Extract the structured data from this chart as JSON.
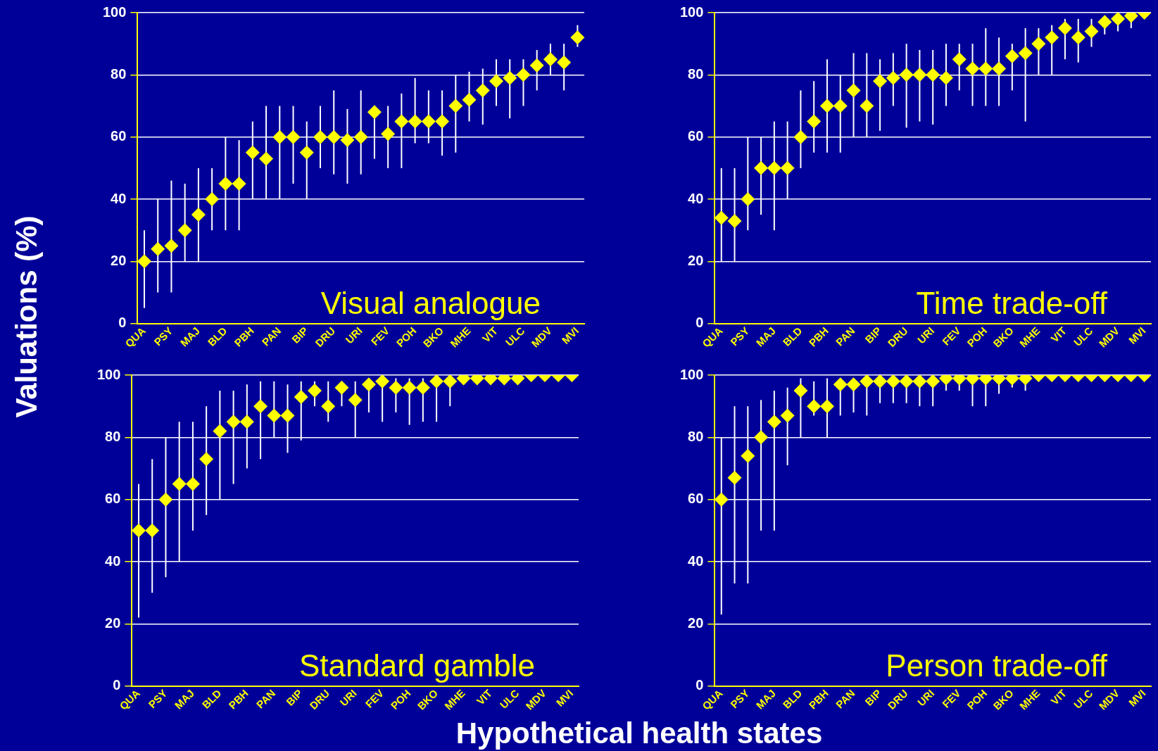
{
  "chart_data": [
    {
      "type": "scatter",
      "title": "Visual analogue",
      "xlabel": "Hypothetical health states",
      "ylabel": "Valuations (%)",
      "categories": [
        "QUA",
        null,
        "PSY",
        null,
        "MAJ",
        null,
        "BLD",
        null,
        "PBH",
        null,
        "PAN",
        null,
        "BIP",
        null,
        "DRU",
        null,
        "URI",
        null,
        "FEV",
        null,
        "POH",
        null,
        "BKO",
        null,
        "MHE",
        null,
        "VIT",
        null,
        "ULC",
        null,
        "MDV",
        null,
        "MVI"
      ],
      "series": [
        {
          "color": "#ffff00",
          "values": [
            20,
            24,
            25,
            30,
            35,
            40,
            45,
            45,
            55,
            53,
            60,
            60,
            55,
            60,
            60,
            59,
            60,
            68,
            61,
            65,
            65,
            65,
            65,
            70,
            72,
            75,
            78,
            79,
            80,
            83,
            85,
            84,
            92
          ],
          "errors": [
            [
              5,
              30
            ],
            [
              10,
              40
            ],
            [
              10,
              46
            ],
            [
              20,
              45
            ],
            [
              20,
              50
            ],
            [
              30,
              50
            ],
            [
              30,
              60
            ],
            [
              30,
              59
            ],
            [
              40,
              65
            ],
            [
              40,
              70
            ],
            [
              40,
              70
            ],
            [
              45,
              70
            ],
            [
              40,
              65
            ],
            [
              50,
              70
            ],
            [
              48,
              75
            ],
            [
              45,
              69
            ],
            [
              48,
              75
            ],
            [
              53,
              70
            ],
            [
              50,
              70
            ],
            [
              50,
              74
            ],
            [
              58,
              79
            ],
            [
              58,
              75
            ],
            [
              54,
              75
            ],
            [
              55,
              80
            ],
            [
              65,
              81
            ],
            [
              64,
              82
            ],
            [
              70,
              85
            ],
            [
              66,
              85
            ],
            [
              70,
              85
            ],
            [
              75,
              88
            ],
            [
              80,
              90
            ],
            [
              75,
              90
            ],
            [
              89,
              96
            ]
          ]
        }
      ],
      "ylim": [
        0,
        100
      ],
      "yticks": [
        0,
        20,
        40,
        60,
        80,
        100
      ],
      "grid": "y",
      "marker": "diamond"
    },
    {
      "type": "scatter",
      "title": "Time trade-off",
      "categories": [
        "QUA",
        null,
        "PSY",
        null,
        "MAJ",
        null,
        "BLD",
        null,
        "PBH",
        null,
        "PAN",
        null,
        "BIP",
        null,
        "DRU",
        null,
        "URI",
        null,
        "FEV",
        null,
        "POH",
        null,
        "BKO",
        null,
        "MHE",
        null,
        "VIT",
        null,
        "ULC",
        null,
        "MDV",
        null,
        "MVI"
      ],
      "series": [
        {
          "color": "#ffff00",
          "values": [
            34,
            33,
            40,
            50,
            50,
            50,
            60,
            65,
            70,
            70,
            75,
            70,
            78,
            79,
            80,
            80,
            80,
            79,
            85,
            82,
            82,
            82,
            86,
            87,
            90,
            92,
            95,
            92,
            94,
            97,
            98,
            99,
            100
          ],
          "errors": [
            [
              20,
              50
            ],
            [
              20,
              50
            ],
            [
              30,
              60
            ],
            [
              35,
              60
            ],
            [
              30,
              65
            ],
            [
              40,
              65
            ],
            [
              50,
              75
            ],
            [
              55,
              78
            ],
            [
              55,
              85
            ],
            [
              55,
              80
            ],
            [
              60,
              87
            ],
            [
              60,
              87
            ],
            [
              62,
              85
            ],
            [
              70,
              87
            ],
            [
              63,
              90
            ],
            [
              65,
              88
            ],
            [
              64,
              88
            ],
            [
              70,
              90
            ],
            [
              75,
              90
            ],
            [
              70,
              90
            ],
            [
              70,
              95
            ],
            [
              70,
              92
            ],
            [
              75,
              90
            ],
            [
              65,
              95
            ],
            [
              80,
              95
            ],
            [
              80,
              96
            ],
            [
              85,
              98
            ],
            [
              84,
              98
            ],
            [
              89,
              98
            ],
            [
              93,
              99
            ],
            [
              94,
              99
            ],
            [
              95,
              100
            ],
            null
          ]
        }
      ],
      "ylim": [
        0,
        100
      ],
      "yticks": [
        0,
        20,
        40,
        60,
        80,
        100
      ],
      "grid": "y",
      "marker": "diamond"
    },
    {
      "type": "scatter",
      "title": "Standard gamble",
      "categories": [
        "QUA",
        null,
        "PSY",
        null,
        "MAJ",
        null,
        "BLD",
        null,
        "PBH",
        null,
        "PAN",
        null,
        "BIP",
        null,
        "DRU",
        null,
        "URI",
        null,
        "FEV",
        null,
        "POH",
        null,
        "BKO",
        null,
        "MHE",
        null,
        "VIT",
        null,
        "ULC",
        null,
        "MDV",
        null,
        "MVI"
      ],
      "series": [
        {
          "color": "#ffff00",
          "values": [
            50,
            50,
            60,
            65,
            65,
            73,
            82,
            85,
            85,
            90,
            87,
            87,
            93,
            95,
            90,
            96,
            92,
            97,
            98,
            96,
            96,
            96,
            98,
            98,
            99,
            99,
            99,
            99,
            99,
            100,
            100,
            100,
            100
          ],
          "errors": [
            [
              22,
              65
            ],
            [
              30,
              73
            ],
            [
              35,
              80
            ],
            [
              40,
              85
            ],
            [
              50,
              85
            ],
            [
              55,
              90
            ],
            [
              60,
              95
            ],
            [
              65,
              95
            ],
            [
              70,
              97
            ],
            [
              73,
              98
            ],
            [
              80,
              98
            ],
            [
              75,
              97
            ],
            [
              79,
              98
            ],
            [
              90,
              98
            ],
            [
              85,
              98
            ],
            [
              90,
              98
            ],
            [
              80,
              98
            ],
            [
              88,
              99
            ],
            [
              85,
              99
            ],
            [
              88,
              99
            ],
            [
              84,
              99
            ],
            [
              85,
              99
            ],
            [
              85,
              100
            ],
            [
              90,
              99
            ],
            null,
            null,
            null,
            [
              97,
              100
            ],
            null,
            null,
            null,
            null,
            null
          ]
        }
      ],
      "ylim": [
        0,
        100
      ],
      "yticks": [
        0,
        20,
        40,
        60,
        80,
        100
      ],
      "grid": "y",
      "marker": "diamond"
    },
    {
      "type": "scatter",
      "title": "Person trade-off",
      "categories": [
        "QUA",
        null,
        "PSY",
        null,
        "MAJ",
        null,
        "BLD",
        null,
        "PBH",
        null,
        "PAN",
        null,
        "BIP",
        null,
        "DRU",
        null,
        "URI",
        null,
        "FEV",
        null,
        "POH",
        null,
        "BKO",
        null,
        "MHE",
        null,
        "VIT",
        null,
        "ULC",
        null,
        "MDV",
        null,
        "MVI"
      ],
      "series": [
        {
          "color": "#ffff00",
          "values": [
            60,
            67,
            74,
            80,
            85,
            87,
            95,
            90,
            90,
            97,
            97,
            98,
            98,
            98,
            98,
            98,
            98,
            99,
            99,
            99,
            99,
            99,
            99,
            99,
            100,
            100,
            100,
            100,
            100,
            100,
            100,
            100,
            100
          ],
          "errors": [
            [
              23,
              80
            ],
            [
              33,
              90
            ],
            [
              33,
              90
            ],
            [
              50,
              92
            ],
            [
              50,
              95
            ],
            [
              71,
              96
            ],
            [
              80,
              99
            ],
            [
              87,
              98
            ],
            [
              80,
              99
            ],
            [
              87,
              99
            ],
            [
              88,
              99
            ],
            [
              87,
              99
            ],
            [
              91,
              99
            ],
            [
              91,
              99
            ],
            [
              91,
              99
            ],
            [
              90,
              99
            ],
            [
              90,
              99
            ],
            [
              95,
              99
            ],
            [
              95,
              99
            ],
            [
              90,
              99
            ],
            [
              90,
              99
            ],
            [
              94,
              99
            ],
            [
              96,
              99
            ],
            [
              95,
              99
            ],
            null,
            null,
            null,
            null,
            null,
            null,
            null,
            null,
            null
          ]
        }
      ],
      "ylim": [
        0,
        100
      ],
      "yticks": [
        0,
        20,
        40,
        60,
        80,
        100
      ],
      "grid": "y",
      "marker": "diamond"
    }
  ]
}
